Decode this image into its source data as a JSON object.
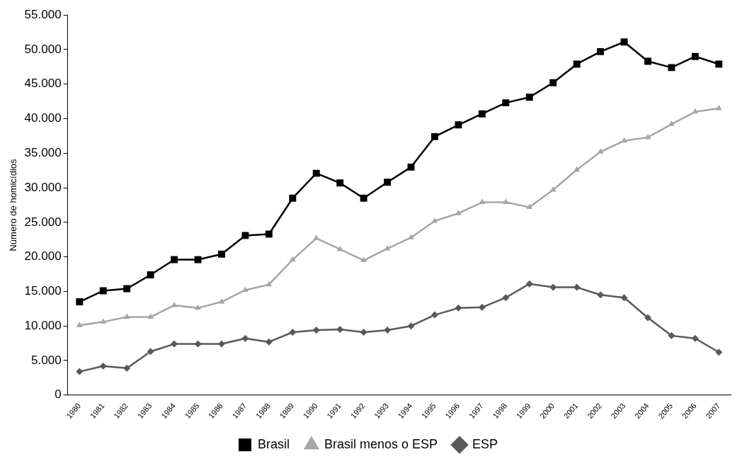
{
  "chart_data": {
    "type": "line",
    "ylabel": "Número de homicídios",
    "categories": [
      "1980",
      "1981",
      "1982",
      "1983",
      "1984",
      "1985",
      "1986",
      "1987",
      "1988",
      "1989",
      "1990",
      "1991",
      "1992",
      "1993",
      "1994",
      "1995",
      "1996",
      "1997",
      "1998",
      "1999",
      "2000",
      "2001",
      "2002",
      "2003",
      "2004",
      "2005",
      "2006",
      "2007"
    ],
    "series": [
      {
        "name": "Brasil",
        "color": "#000000",
        "marker": "square",
        "values": [
          13500,
          15100,
          15400,
          17400,
          19600,
          19600,
          20400,
          23100,
          23300,
          28500,
          32100,
          30700,
          28500,
          30800,
          33000,
          37400,
          39100,
          40700,
          42300,
          43100,
          45200,
          47900,
          49700,
          51100,
          48300,
          47400,
          49000,
          47900
        ]
      },
      {
        "name": "Brasil menos o ESP",
        "color": "#a6a6a6",
        "marker": "triangle",
        "values": [
          10100,
          10600,
          11300,
          11300,
          13000,
          12600,
          13500,
          15200,
          16000,
          19600,
          22700,
          21100,
          19500,
          21200,
          22800,
          25200,
          26300,
          27900,
          27900,
          27200,
          29700,
          32600,
          35200,
          36800,
          37300,
          39200,
          41000,
          41500
        ]
      },
      {
        "name": "ESP",
        "color": "#595959",
        "marker": "diamond",
        "values": [
          3400,
          4200,
          3900,
          6300,
          7400,
          7400,
          7400,
          8200,
          7700,
          9100,
          9400,
          9500,
          9100,
          9400,
          10000,
          11600,
          12600,
          12700,
          14100,
          16100,
          15600,
          15600,
          14500,
          14100,
          11200,
          8600,
          8200,
          6200
        ]
      }
    ],
    "ylim": [
      0,
      55000
    ],
    "yticks": [
      {
        "value": 0,
        "label": "0"
      },
      {
        "value": 5000,
        "label": "5.000"
      },
      {
        "value": 10000,
        "label": "10.000"
      },
      {
        "value": 15000,
        "label": "15.000"
      },
      {
        "value": 20000,
        "label": "20.000"
      },
      {
        "value": 25000,
        "label": "25.000"
      },
      {
        "value": 30000,
        "label": "30.000"
      },
      {
        "value": 35000,
        "label": "35.000"
      },
      {
        "value": 40000,
        "label": "40.000"
      },
      {
        "value": 45000,
        "label": "45.000"
      },
      {
        "value": 50000,
        "label": "50.000"
      },
      {
        "value": 55000,
        "label": "55.000"
      }
    ],
    "grid": false,
    "legend": "bottom",
    "line_style": "solid"
  }
}
